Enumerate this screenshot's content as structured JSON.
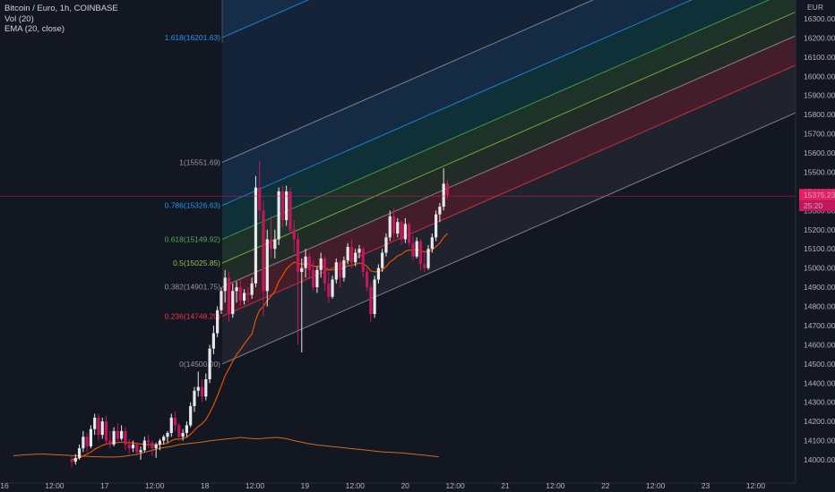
{
  "legend": {
    "symbol": "Bitcoin / Euro, 1h, COINBASE",
    "volume": "Vol (20)",
    "ema": "EMA (20, close)"
  },
  "price_axis": {
    "currency": "EUR",
    "last_price": "15375.23",
    "countdown": "25:20",
    "ticks": [
      "16300.00",
      "16200.00",
      "16100.00",
      "16000.00",
      "15900.00",
      "15800.00",
      "15700.00",
      "15600.00",
      "15500.00",
      "15400.00",
      "15300.00",
      "15200.00",
      "15100.00",
      "15000.00",
      "14900.00",
      "14800.00",
      "14700.00",
      "14600.00",
      "14500.00",
      "14400.00",
      "14300.00",
      "14200.00",
      "14100.00",
      "14000.00"
    ]
  },
  "time_axis": {
    "ticks": [
      "16",
      "12:00",
      "17",
      "12:00",
      "18",
      "12:00",
      "19",
      "12:00",
      "20",
      "12:00",
      "21",
      "12:00",
      "22",
      "12:00",
      "23",
      "12:00"
    ]
  },
  "colors": {
    "background": "#131722",
    "up_candle": "#e8e8ea",
    "down_candle": "#c2185b",
    "ema": "#e65100",
    "volume_line": "#d2691e",
    "last_price": "#e91e63"
  },
  "chart_data": {
    "type": "candlestick",
    "title": "Bitcoin / Euro, 1h, COINBASE",
    "ylim": [
      13950,
      16330
    ],
    "y_scale": "linear",
    "grid": false,
    "fib_channel": {
      "levels": [
        {
          "ratio": "1",
          "price": "15551.69",
          "label": "1(15551.69)",
          "color": "#9598a1"
        },
        {
          "ratio": "0.786",
          "price": "15326.63",
          "label": "0.786(15326.63)",
          "color": "#2196f3"
        },
        {
          "ratio": "0.618",
          "price": "15149.92",
          "label": "0.618(15149.92)",
          "color": "#4caf50"
        },
        {
          "ratio": "0.5",
          "price": "15025.85",
          "label": "0.5(15025.85)",
          "color": "#8bc34a"
        },
        {
          "ratio": "0.382",
          "price": "14901.75",
          "label": "0.382(14901.75)",
          "color": "#9598a1"
        },
        {
          "ratio": "0.236",
          "price": "14748.20",
          "label": "0.236(14748.20)",
          "color": "#f23645"
        },
        {
          "ratio": "0",
          "price": "14500.00",
          "label": "0(14500.00)",
          "color": "#9598a1"
        },
        {
          "ratio": "1.618",
          "price": "16201.63",
          "label": "1.618(16201.63)",
          "color": "#2196f3"
        }
      ]
    },
    "candles": [
      [
        14000,
        14020,
        13960,
        13990
      ],
      [
        13990,
        14030,
        13975,
        14010
      ],
      [
        14010,
        14080,
        14000,
        14060
      ],
      [
        14060,
        14150,
        14040,
        14120
      ],
      [
        14120,
        14140,
        14040,
        14070
      ],
      [
        14070,
        14180,
        14060,
        14160
      ],
      [
        14160,
        14240,
        14130,
        14220
      ],
      [
        14220,
        14240,
        14100,
        14130
      ],
      [
        14130,
        14220,
        14110,
        14200
      ],
      [
        14200,
        14230,
        14080,
        14100
      ],
      [
        14100,
        14150,
        14060,
        14080
      ],
      [
        14080,
        14170,
        14070,
        14150
      ],
      [
        14150,
        14190,
        14090,
        14110
      ],
      [
        14110,
        14180,
        14100,
        14150
      ],
      [
        14150,
        14170,
        14050,
        14080
      ],
      [
        14080,
        14110,
        14030,
        14060
      ],
      [
        14060,
        14100,
        14040,
        14080
      ],
      [
        14080,
        14090,
        14020,
        14040
      ],
      [
        14040,
        14070,
        14000,
        14050
      ],
      [
        14050,
        14120,
        14040,
        14100
      ],
      [
        14100,
        14130,
        14060,
        14090
      ],
      [
        14090,
        14100,
        14020,
        14060
      ],
      [
        14060,
        14090,
        14010,
        14080
      ],
      [
        14080,
        14110,
        14050,
        14100
      ],
      [
        14100,
        14130,
        14080,
        14120
      ],
      [
        14120,
        14150,
        14090,
        14140
      ],
      [
        14140,
        14240,
        14120,
        14220
      ],
      [
        14220,
        14250,
        14150,
        14180
      ],
      [
        14180,
        14190,
        14100,
        14120
      ],
      [
        14120,
        14160,
        14100,
        14140
      ],
      [
        14140,
        14200,
        14120,
        14180
      ],
      [
        14180,
        14300,
        14170,
        14280
      ],
      [
        14280,
        14380,
        14250,
        14360
      ],
      [
        14360,
        14460,
        14330,
        14380
      ],
      [
        14380,
        14420,
        14300,
        14330
      ],
      [
        14330,
        14450,
        14310,
        14420
      ],
      [
        14420,
        14600,
        14400,
        14580
      ],
      [
        14580,
        14700,
        14550,
        14660
      ],
      [
        14660,
        14800,
        14640,
        14780
      ],
      [
        14780,
        14900,
        14760,
        14880
      ],
      [
        14880,
        14990,
        14820,
        14950
      ],
      [
        14950,
        14980,
        14720,
        14760
      ],
      [
        14760,
        14920,
        14740,
        14880
      ],
      [
        14880,
        14930,
        14820,
        14900
      ],
      [
        14900,
        14940,
        14800,
        14830
      ],
      [
        14830,
        14890,
        14810,
        14870
      ],
      [
        14870,
        14900,
        14820,
        14860
      ],
      [
        14860,
        14950,
        14840,
        14920
      ],
      [
        14920,
        15480,
        14900,
        15420
      ],
      [
        15420,
        15560,
        15250,
        15300
      ],
      [
        15300,
        15350,
        14750,
        14880
      ],
      [
        14880,
        15200,
        14800,
        15150
      ],
      [
        15150,
        15270,
        15050,
        15100
      ],
      [
        15100,
        15200,
        15050,
        15150
      ],
      [
        15150,
        15420,
        15120,
        15400
      ],
      [
        15400,
        15430,
        15210,
        15250
      ],
      [
        15250,
        15430,
        15220,
        15400
      ],
      [
        15400,
        15420,
        15180,
        15200
      ],
      [
        15200,
        15250,
        15080,
        15150
      ],
      [
        15150,
        15180,
        14600,
        14980
      ],
      [
        14980,
        15050,
        14560,
        15000
      ],
      [
        15000,
        15100,
        14950,
        15060
      ],
      [
        15060,
        15080,
        14950,
        14990
      ],
      [
        14990,
        15040,
        14880,
        14900
      ],
      [
        14900,
        15010,
        14870,
        14990
      ],
      [
        14990,
        15080,
        14950,
        15050
      ],
      [
        15050,
        15060,
        14880,
        14920
      ],
      [
        14920,
        14980,
        14820,
        14850
      ],
      [
        14850,
        14960,
        14840,
        14940
      ],
      [
        14940,
        15050,
        14920,
        15030
      ],
      [
        15030,
        15040,
        14900,
        14950
      ],
      [
        14950,
        15060,
        14930,
        15040
      ],
      [
        15040,
        15130,
        15020,
        15110
      ],
      [
        15110,
        15150,
        15000,
        15030
      ],
      [
        15030,
        15100,
        15010,
        15080
      ],
      [
        15080,
        15120,
        15050,
        15100
      ],
      [
        15100,
        15110,
        14950,
        14980
      ],
      [
        14980,
        15000,
        14880,
        14900
      ],
      [
        14900,
        14920,
        14720,
        14760
      ],
      [
        14760,
        14960,
        14740,
        14940
      ],
      [
        14940,
        15020,
        14920,
        15000
      ],
      [
        15000,
        15100,
        14980,
        15080
      ],
      [
        15080,
        15180,
        15060,
        15160
      ],
      [
        15160,
        15300,
        15140,
        15270
      ],
      [
        15270,
        15310,
        15150,
        15180
      ],
      [
        15180,
        15260,
        15160,
        15240
      ],
      [
        15240,
        15250,
        15120,
        15150
      ],
      [
        15150,
        15260,
        15130,
        15230
      ],
      [
        15230,
        15240,
        15110,
        15130
      ],
      [
        15130,
        15170,
        15040,
        15060
      ],
      [
        15060,
        15160,
        15050,
        15140
      ],
      [
        15140,
        15150,
        14990,
        15020
      ],
      [
        15020,
        15080,
        14980,
        15000
      ],
      [
        15000,
        15120,
        14990,
        15100
      ],
      [
        15100,
        15180,
        15080,
        15160
      ],
      [
        15160,
        15300,
        15140,
        15280
      ],
      [
        15280,
        15340,
        15240,
        15320
      ],
      [
        15320,
        15520,
        15300,
        15440
      ],
      [
        15440,
        15460,
        15360,
        15380
      ]
    ],
    "ema": [
      14000,
      14005,
      14010,
      14020,
      14030,
      14040,
      14055,
      14065,
      14075,
      14082,
      14085,
      14088,
      14090,
      14092,
      14091,
      14089,
      14088,
      14085,
      14082,
      14080,
      14080,
      14078,
      14078,
      14080,
      14083,
      14086,
      14100,
      14108,
      14108,
      14111,
      14117,
      14133,
      14154,
      14174,
      14188,
      14210,
      14245,
      14285,
      14333,
      14384,
      14438,
      14474,
      14514,
      14548,
      14574,
      14604,
      14630,
      14657,
      14730,
      14780,
      14800,
      14830,
      14853,
      14880,
      14930,
      14960,
      14995,
      15015,
      15030,
      15025,
      15020,
      15022,
      15020,
      15010,
      15008,
      15012,
      15005,
      14990,
      14990,
      14995,
      14995,
      15001,
      15012,
      15014,
      15020,
      15026,
      15022,
      15010,
      14985,
      14980,
      14982,
      14991,
      15007,
      15032,
      15045,
      15064,
      15072,
      15087,
      15094,
      15092,
      15098,
      15090,
      15084,
      15086,
      15094,
      15112,
      15130,
      15160,
      15180
    ],
    "volume": [
      0.32,
      0.33,
      0.35,
      0.36,
      0.37,
      0.38,
      0.38,
      0.37,
      0.36,
      0.35,
      0.34,
      0.33,
      0.32,
      0.31,
      0.3,
      0.29,
      0.28,
      0.28,
      0.27,
      0.27,
      0.27,
      0.28,
      0.3,
      0.33,
      0.36,
      0.4,
      0.45,
      0.5,
      0.55,
      0.6,
      0.63,
      0.66,
      0.7,
      0.74,
      0.76,
      0.78,
      0.8,
      0.82,
      0.85,
      0.88,
      0.9,
      0.92,
      0.94,
      0.96,
      0.98,
      1.0,
      0.98,
      0.96,
      0.95,
      0.96,
      0.98,
      0.99,
      1.0,
      0.98,
      0.95,
      0.9,
      0.86,
      0.82,
      0.78,
      0.75,
      0.72,
      0.7,
      0.68,
      0.66,
      0.64,
      0.62,
      0.6,
      0.58,
      0.56,
      0.54,
      0.52,
      0.5,
      0.48,
      0.46,
      0.45,
      0.44,
      0.43,
      0.42,
      0.4,
      0.38,
      0.36,
      0.34,
      0.32,
      0.3,
      0.28
    ]
  }
}
